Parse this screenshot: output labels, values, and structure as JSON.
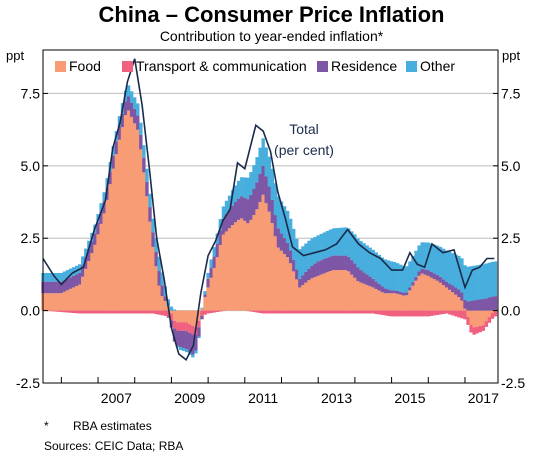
{
  "chart_data": {
    "type": "bar",
    "title": "China – Consumer Price Inflation",
    "subtitle": "Contribution to year-ended inflation*",
    "y_unit_left": "ppt",
    "y_unit_right": "ppt",
    "ylim": [
      -2.5,
      9.0
    ],
    "yticks": [
      "-2.5",
      "0.0",
      "2.5",
      "5.0",
      "7.5"
    ],
    "ytick_values": [
      -2.5,
      0.0,
      2.5,
      5.0,
      7.5
    ],
    "xlim": [
      2005.5,
      2017.9
    ],
    "xtick_labels": [
      "2007",
      "2009",
      "2011",
      "2013",
      "2015",
      "2017"
    ],
    "xtick_values": [
      2007.0,
      2009.0,
      2011.0,
      2013.0,
      2015.0,
      2017.0
    ],
    "grid": true,
    "legend_position": "top",
    "annotation": [
      "Total",
      "(per cent)"
    ],
    "series": [
      {
        "name": "Food",
        "color": "#F79C74",
        "x": [
          2005.5,
          2006.0,
          2006.5,
          2006.9,
          2007.2,
          2007.4,
          2007.6,
          2007.8,
          2008.1,
          2008.3,
          2008.5,
          2008.7,
          2008.9,
          2009.1,
          2009.4,
          2009.7,
          2009.9,
          2010.2,
          2010.4,
          2010.7,
          2010.9,
          2011.1,
          2011.3,
          2011.5,
          2011.7,
          2011.9,
          2012.2,
          2012.5,
          2012.8,
          2013.0,
          2013.4,
          2013.8,
          2014.1,
          2014.5,
          2014.8,
          2015.1,
          2015.4,
          2015.6,
          2015.8,
          2016.0,
          2016.3,
          2016.6,
          2016.9,
          2017.2,
          2017.5,
          2017.8
        ],
        "values": [
          0.6,
          0.6,
          0.9,
          2.2,
          3.5,
          4.8,
          6.0,
          7.0,
          6.2,
          4.3,
          2.2,
          0.6,
          0.2,
          -0.4,
          -0.4,
          -0.6,
          0.4,
          1.6,
          2.6,
          3.0,
          3.2,
          3.0,
          3.4,
          4.0,
          3.3,
          2.2,
          1.8,
          0.8,
          1.1,
          1.2,
          1.4,
          1.4,
          1.0,
          0.8,
          0.6,
          0.6,
          0.5,
          0.9,
          1.3,
          1.2,
          1.0,
          0.7,
          0.4,
          -0.6,
          -0.5,
          0.0
        ]
      },
      {
        "name": "Transport & communication",
        "color": "#F0607F",
        "x": [
          2005.5,
          2006.5,
          2007.5,
          2008.5,
          2008.9,
          2009.2,
          2009.6,
          2010.0,
          2010.5,
          2011.0,
          2011.5,
          2012.0,
          2012.5,
          2013.0,
          2013.5,
          2014.0,
          2014.5,
          2015.0,
          2015.5,
          2016.0,
          2016.5,
          2017.0,
          2017.5,
          2017.8
        ],
        "values": [
          0.0,
          -0.1,
          -0.1,
          -0.1,
          -0.2,
          -0.3,
          -0.3,
          -0.1,
          0.0,
          0.0,
          -0.1,
          -0.1,
          -0.1,
          -0.1,
          -0.1,
          -0.1,
          -0.1,
          -0.2,
          -0.2,
          -0.2,
          -0.1,
          -0.3,
          -0.2,
          -0.2
        ]
      },
      {
        "name": "Residence",
        "color": "#7E56A6",
        "x": [
          2005.5,
          2007.0,
          2008.0,
          2008.7,
          2009.1,
          2009.6,
          2010.0,
          2010.5,
          2011.0,
          2011.5,
          2012.0,
          2012.5,
          2013.0,
          2014.0,
          2015.0,
          2015.5,
          2016.0,
          2016.5,
          2017.0,
          2017.5,
          2017.8
        ],
        "values": [
          0.4,
          0.4,
          0.5,
          0.5,
          -0.5,
          -0.7,
          0.3,
          0.6,
          0.8,
          1.0,
          0.6,
          0.3,
          0.5,
          0.5,
          0.1,
          0.1,
          0.2,
          0.2,
          0.3,
          0.4,
          0.5
        ]
      },
      {
        "name": "Other",
        "color": "#47AEDE",
        "x": [
          2005.5,
          2007.0,
          2008.0,
          2008.7,
          2009.2,
          2009.7,
          2010.1,
          2010.6,
          2011.0,
          2011.4,
          2011.8,
          2012.2,
          2012.6,
          2013.0,
          2014.0,
          2014.5,
          2015.0,
          2015.4,
          2015.8,
          2016.2,
          2016.6,
          2017.0,
          2017.4,
          2017.8
        ],
        "values": [
          0.3,
          0.3,
          0.4,
          0.5,
          -0.1,
          -0.1,
          0.3,
          0.5,
          0.7,
          0.9,
          1.1,
          1.1,
          1.0,
          0.9,
          1.0,
          1.0,
          1.0,
          0.9,
          0.9,
          1.0,
          1.1,
          1.2,
          1.2,
          1.2
        ]
      },
      {
        "name": "Total",
        "type": "line",
        "color": "#1A2B4A",
        "x": [
          2005.5,
          2005.8,
          2006.0,
          2006.3,
          2006.6,
          2006.9,
          2007.2,
          2007.4,
          2007.6,
          2007.8,
          2008.0,
          2008.2,
          2008.4,
          2008.6,
          2008.8,
          2009.0,
          2009.2,
          2009.4,
          2009.6,
          2009.8,
          2010.0,
          2010.2,
          2010.4,
          2010.6,
          2010.8,
          2011.0,
          2011.1,
          2011.3,
          2011.5,
          2011.7,
          2011.9,
          2012.1,
          2012.3,
          2012.6,
          2012.9,
          2013.2,
          2013.5,
          2013.8,
          2014.1,
          2014.4,
          2014.7,
          2015.0,
          2015.3,
          2015.5,
          2015.7,
          2015.9,
          2016.1,
          2016.4,
          2016.7,
          2017.0,
          2017.2,
          2017.4,
          2017.6,
          2017.8
        ],
        "values": [
          1.8,
          1.2,
          0.9,
          1.3,
          1.5,
          2.8,
          3.8,
          5.6,
          6.5,
          7.9,
          8.7,
          7.1,
          4.9,
          2.5,
          1.1,
          -0.6,
          -1.5,
          -1.7,
          -1.2,
          0.6,
          1.9,
          2.4,
          3.1,
          3.5,
          5.1,
          4.9,
          5.4,
          6.4,
          6.2,
          5.5,
          4.1,
          3.2,
          2.2,
          1.9,
          2.0,
          2.1,
          2.3,
          2.8,
          2.3,
          2.0,
          1.8,
          1.4,
          1.4,
          2.0,
          1.6,
          1.5,
          2.3,
          2.0,
          2.1,
          0.8,
          1.4,
          1.5,
          1.8,
          1.8
        ]
      }
    ]
  },
  "notes": {
    "estimate_marker": "*",
    "estimate_text": "RBA estimates",
    "sources": "Sources: CEIC Data; RBA"
  }
}
